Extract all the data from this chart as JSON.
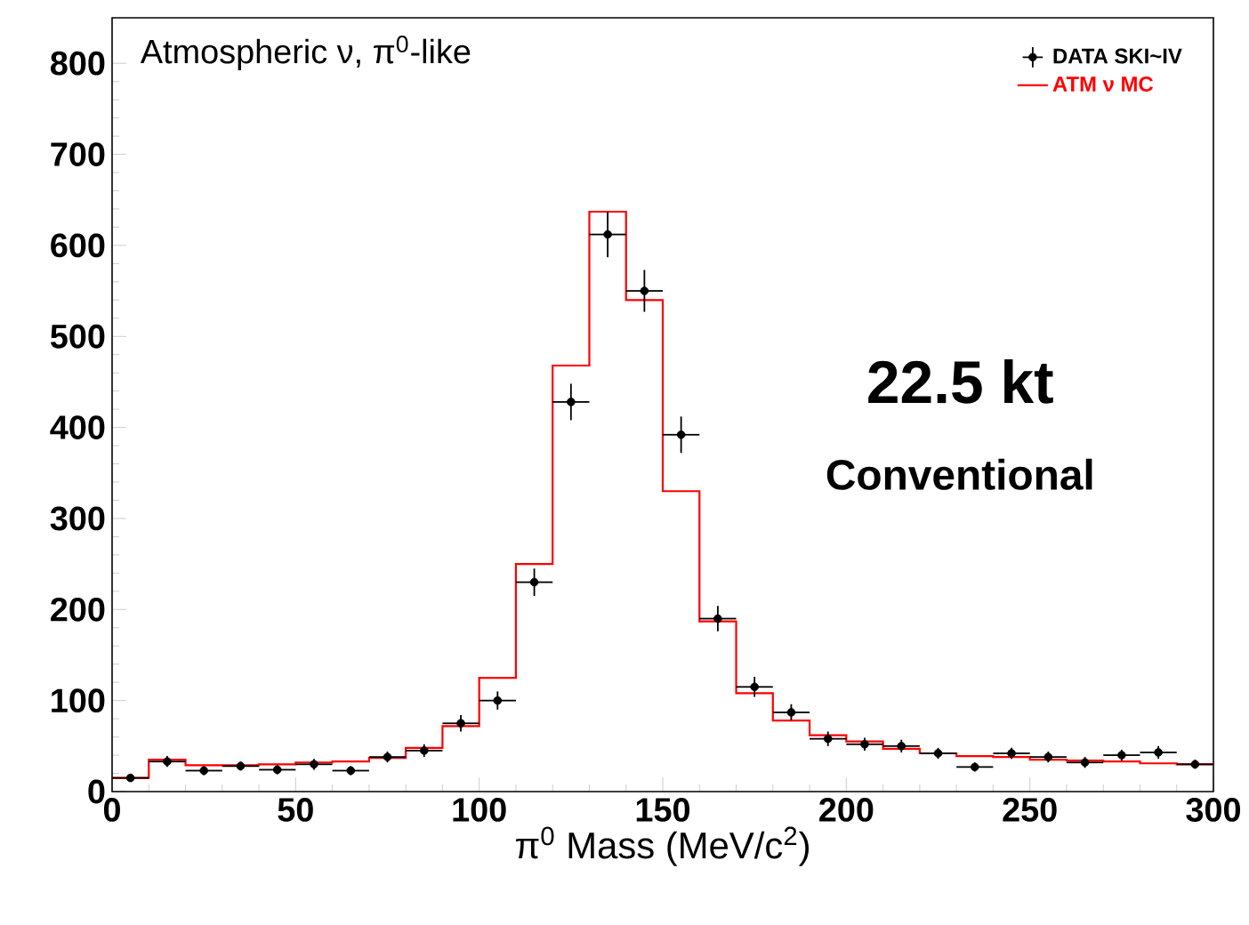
{
  "chart_data": {
    "type": "histogram",
    "title": "Atmospheric ν, π$^{0}$-like",
    "xlabel": "π$^{0}$ Mass (MeV/c$^{2}$)",
    "bins": [
      0,
      10,
      20,
      30,
      40,
      50,
      60,
      70,
      80,
      90,
      100,
      110,
      120,
      130,
      140,
      150,
      160,
      170,
      180,
      190,
      200,
      210,
      220,
      230,
      240,
      250,
      260,
      270,
      280,
      290,
      300
    ],
    "series": [
      {
        "type": "scatter",
        "name": "DATA SKI~IV",
        "color": "#000000",
        "marker": "circle",
        "x": [
          5,
          15,
          25,
          35,
          45,
          55,
          65,
          75,
          85,
          95,
          105,
          115,
          125,
          135,
          145,
          155,
          165,
          175,
          185,
          195,
          205,
          215,
          225,
          235,
          245,
          255,
          265,
          275,
          285,
          295
        ],
        "values": [
          15,
          33,
          23,
          28,
          24,
          30,
          23,
          38,
          45,
          75,
          100,
          230,
          428,
          612,
          550,
          392,
          190,
          115,
          87,
          58,
          52,
          50,
          42,
          27,
          42,
          38,
          32,
          40,
          43,
          30
        ],
        "errors": [
          4,
          6,
          5,
          5,
          5,
          6,
          5,
          6,
          7,
          9,
          10,
          15,
          20,
          25,
          23,
          20,
          14,
          11,
          9,
          8,
          7,
          7,
          6,
          5,
          6,
          6,
          6,
          6,
          7,
          5
        ],
        "xerrors": [
          5,
          5,
          5,
          5,
          5,
          5,
          5,
          5,
          5,
          5,
          5,
          5,
          5,
          5,
          5,
          5,
          5,
          5,
          5,
          5,
          5,
          5,
          5,
          5,
          5,
          5,
          5,
          5,
          5,
          5
        ]
      },
      {
        "name": "ATM ν MC",
        "color": "#ff0000",
        "values": [
          15,
          35,
          29,
          29,
          30,
          32,
          33,
          37,
          48,
          72,
          125,
          250,
          468,
          637,
          540,
          330,
          187,
          108,
          78,
          62,
          55,
          47,
          42,
          39,
          38,
          35,
          34,
          33,
          31,
          30
        ]
      }
    ],
    "xlim": [
      0,
      300
    ],
    "ylim": [
      0,
      850
    ],
    "xticks": [
      0,
      50,
      100,
      150,
      200,
      250,
      300
    ],
    "yticks": [
      0,
      100,
      200,
      300,
      400,
      500,
      600,
      700,
      800
    ],
    "legend": "top right",
    "annotations": [
      "22.5 kt",
      "Conventional"
    ]
  }
}
